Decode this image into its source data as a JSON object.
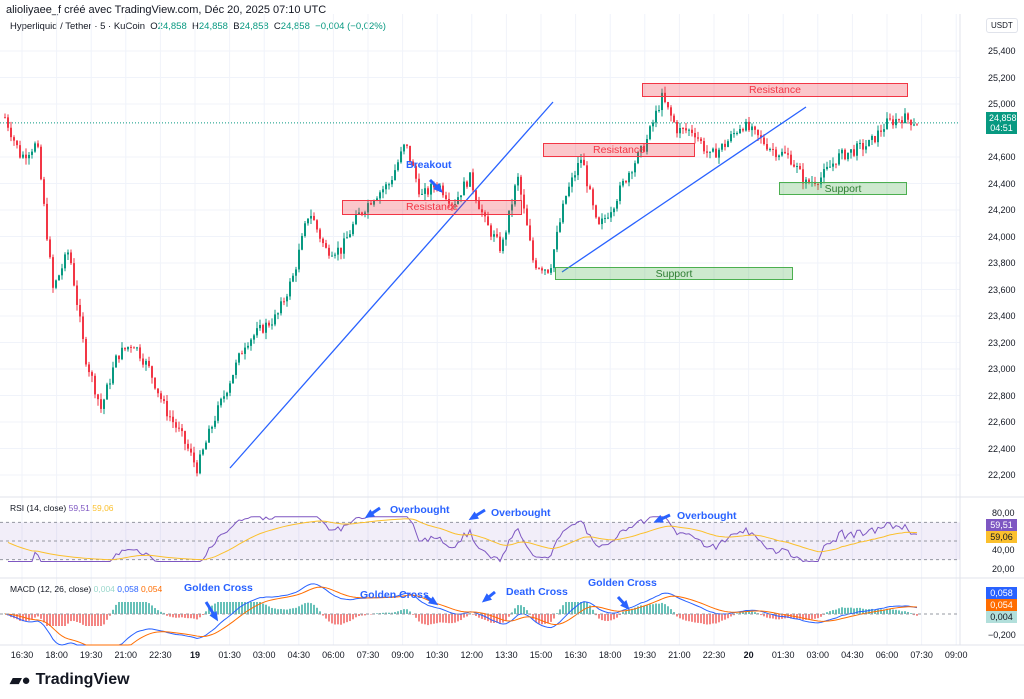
{
  "header": "alioliyaee_f créé avec TradingView.com, Déc 20, 2025 07:10 UTC",
  "legend": {
    "symbol": "Hyperliquid / Tether · 5 · KuCoin",
    "o_label": "O",
    "o": "24,858",
    "h_label": "H",
    "h": "24,858",
    "b_label": "B",
    "b": "24,858",
    "c_label": "C",
    "c": "24,858",
    "change": "−0,004 (−0,02%)"
  },
  "currency": "USDT",
  "colors": {
    "up": "#089981",
    "down": "#f23645",
    "annotation": "#2962ff",
    "rsi": "#7e57c2",
    "rsi_ma": "#fbc02d",
    "macd": "#2962ff",
    "signal": "#ff6d00"
  },
  "chart_data": {
    "type": "candlestick",
    "price_axis": {
      "ticks": [
        "25,400",
        "25,200",
        "25,000",
        "24,600",
        "24,400",
        "24,200",
        "24,000",
        "23,800",
        "23,600",
        "23,400",
        "23,200",
        "23,000",
        "22,800",
        "22,600",
        "22,400",
        "22,200"
      ],
      "range": [
        22200,
        25400
      ]
    },
    "time_ticks": [
      "16:30",
      "18:00",
      "19:30",
      "21:00",
      "22:30",
      "19",
      "01:30",
      "03:00",
      "04:30",
      "06:00",
      "07:30",
      "09:00",
      "10:30",
      "12:00",
      "13:30",
      "15:00",
      "16:30",
      "18:00",
      "19:30",
      "21:00",
      "22:30",
      "20",
      "01:30",
      "03:00",
      "04:30",
      "06:00",
      "07:30",
      "09:00"
    ],
    "approx_close_path": [
      24900,
      24600,
      24700,
      23600,
      23900,
      23100,
      22700,
      23100,
      23200,
      23000,
      22700,
      22500,
      22250,
      22600,
      22900,
      23200,
      23300,
      23400,
      23700,
      24200,
      23900,
      23900,
      24150,
      24300,
      24400,
      24700,
      24300,
      24400,
      24250,
      24450,
      24100,
      23900,
      24450,
      23800,
      23750,
      24300,
      24600,
      24050,
      24250,
      24500,
      24700,
      25050,
      24800,
      24800,
      24600,
      24700,
      24850,
      24750,
      24650,
      24600,
      24400,
      24450,
      24600,
      24650,
      24700,
      24850,
      24900,
      24858
    ],
    "last_price": {
      "value": "24,858",
      "countdown": "04:51"
    },
    "rsi": {
      "label": "RSI (14, close)",
      "value": "59,51",
      "ma": "59,06",
      "ticks": [
        "80,00",
        "40,00",
        "20,00"
      ],
      "bands": [
        70,
        50,
        30
      ]
    },
    "macd": {
      "label": "MACD (12, 26, close)",
      "hist": "0,004",
      "macd": "0,058",
      "signal": "0,054",
      "ticks": [
        "−0,200"
      ]
    },
    "annotations": {
      "breakout": "Breakout",
      "resistance": [
        "Resistance",
        "Resistance",
        "Resistance"
      ],
      "support": [
        "Support",
        "Support"
      ],
      "overbought": [
        "Overbought",
        "Overbought",
        "Overbought"
      ],
      "macd_labels": [
        "Golden Cross",
        "Golden Cross",
        "Death Cross",
        "Golden Cross"
      ]
    }
  },
  "brand": "TradingView"
}
